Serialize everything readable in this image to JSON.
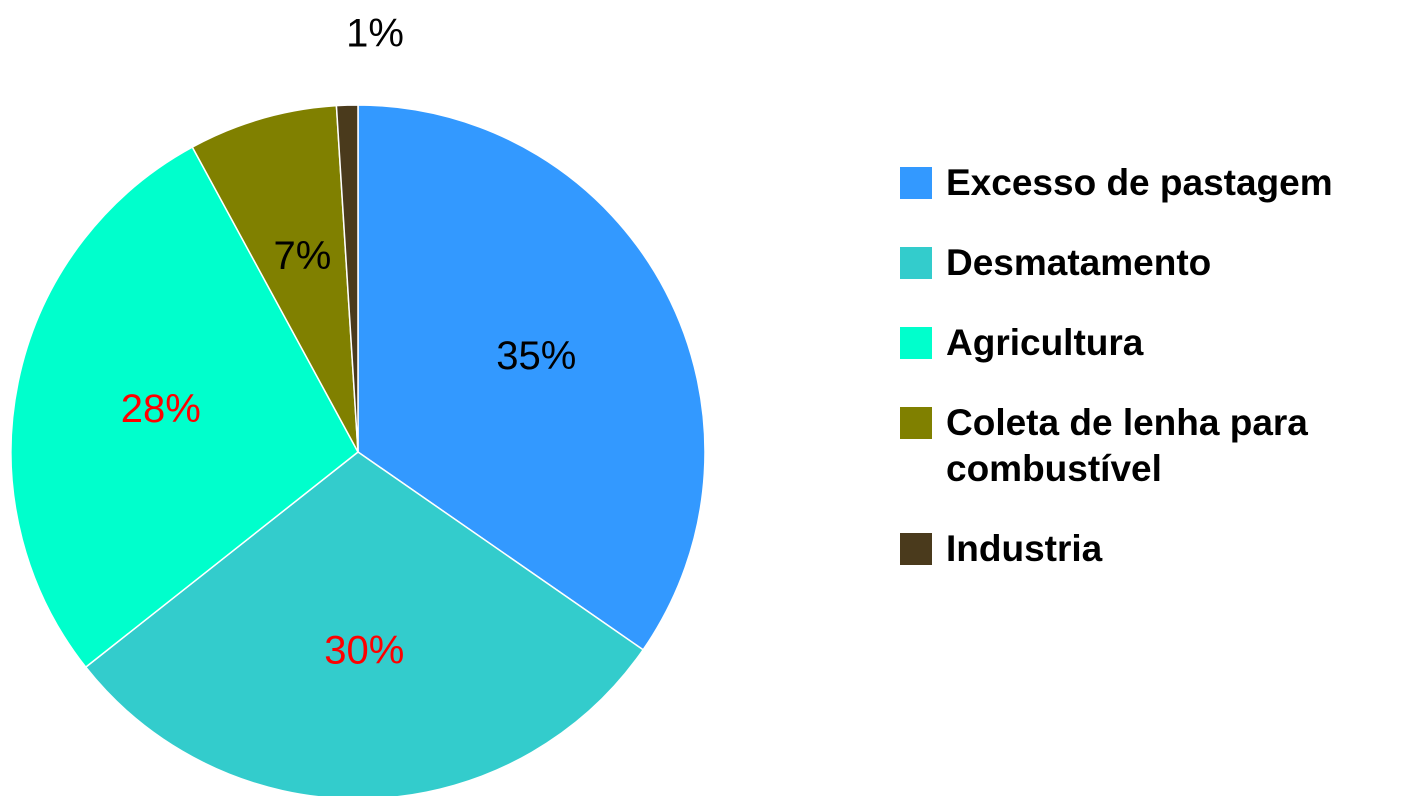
{
  "chart_data": {
    "type": "pie",
    "categories": [
      "Excesso de pastagem",
      "Desmatamento",
      "Agricultura",
      "Coleta de lenha para combustível",
      "Industria"
    ],
    "values": [
      35,
      30,
      28,
      7,
      1
    ],
    "value_labels": [
      "35%",
      "30%",
      "28%",
      "7%",
      "1%"
    ],
    "colors": [
      "#3399ff",
      "#33cccc",
      "#00ffcc",
      "#808000",
      "#4a3a1c"
    ],
    "label_colors": [
      "#000000",
      "#ff0000",
      "#ff0000",
      "#000000",
      "#000000"
    ],
    "legend": "right"
  }
}
